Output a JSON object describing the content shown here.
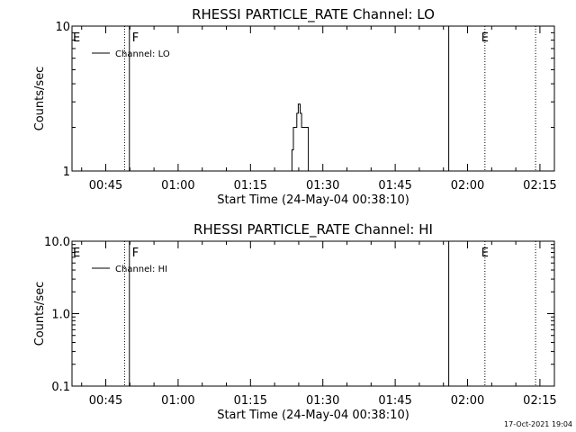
{
  "chart_data": [
    {
      "type": "line",
      "title": "RHESSI PARTICLE_RATE Channel: LO",
      "xlabel": "Start Time (24-May-04 00:38:10)",
      "ylabel": "Counts/sec",
      "y_scale": "log",
      "ylim": [
        1,
        10
      ],
      "ytick_labels": [
        "1",
        "10"
      ],
      "xlim_minutes_after_0038": [
        0,
        100
      ],
      "xtick_labels": [
        "00:45",
        "01:00",
        "01:15",
        "01:30",
        "01:45",
        "02:00",
        "02:15"
      ],
      "xtick_minutes_after_0038": [
        7,
        22,
        37,
        52,
        67,
        82,
        97
      ],
      "legend": {
        "entries": [
          "Channel: LO"
        ],
        "position": "top-left"
      },
      "grid": false,
      "markers": [
        {
          "label": "E",
          "style": "dotted",
          "time_minutes_after_0038": 10.9
        },
        {
          "label": "F",
          "style": "solid",
          "time_minutes_after_0038": 11.9
        },
        {
          "label": "",
          "style": "solid",
          "time_minutes_after_0038": 78.1
        },
        {
          "label": "E",
          "style": "dotted",
          "time_minutes_after_0038": 85.6
        },
        {
          "label": "",
          "style": "dotted",
          "time_minutes_after_0038": 96.1
        }
      ],
      "series": [
        {
          "points": [
            [
              45.6,
              1
            ],
            [
              45.6,
              1.4
            ],
            [
              45.9,
              1.4
            ],
            [
              45.9,
              2.0
            ],
            [
              46.6,
              2.0
            ],
            [
              46.6,
              2.5
            ],
            [
              46.9,
              2.5
            ],
            [
              46.9,
              2.9
            ],
            [
              47.3,
              2.9
            ],
            [
              47.3,
              2.5
            ],
            [
              47.6,
              2.5
            ],
            [
              47.6,
              2.0
            ],
            [
              49.0,
              2.0
            ],
            [
              49.0,
              1
            ]
          ]
        }
      ],
      "stamp": "17-Oct-2021 19:04"
    },
    {
      "type": "line",
      "title": "RHESSI PARTICLE_RATE Channel: HI",
      "xlabel": "Start Time (24-May-04 00:38:10)",
      "ylabel": "Counts/sec",
      "y_scale": "log",
      "ylim": [
        0.1,
        10
      ],
      "ytick_labels": [
        "0.1",
        "1.0",
        "10.0"
      ],
      "xlim_minutes_after_0038": [
        0,
        100
      ],
      "xtick_labels": [
        "00:45",
        "01:00",
        "01:15",
        "01:30",
        "01:45",
        "02:00",
        "02:15"
      ],
      "xtick_minutes_after_0038": [
        7,
        22,
        37,
        52,
        67,
        82,
        97
      ],
      "legend": {
        "entries": [
          "Channel: HI"
        ],
        "position": "top-left"
      },
      "grid": false,
      "markers": [
        {
          "label": "E",
          "style": "dotted",
          "time_minutes_after_0038": 10.9
        },
        {
          "label": "F",
          "style": "solid",
          "time_minutes_after_0038": 11.9
        },
        {
          "label": "",
          "style": "solid",
          "time_minutes_after_0038": 78.1
        },
        {
          "label": "E",
          "style": "dotted",
          "time_minutes_after_0038": 85.6
        },
        {
          "label": "",
          "style": "dotted",
          "time_minutes_after_0038": 96.1
        }
      ],
      "series": [
        {
          "points": []
        }
      ]
    }
  ]
}
